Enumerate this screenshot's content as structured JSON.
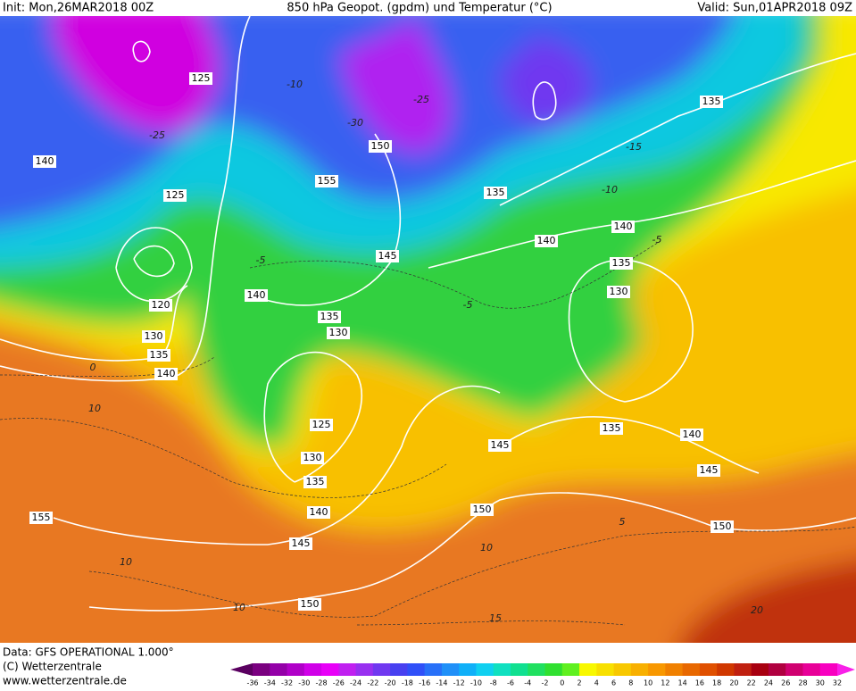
{
  "header": {
    "init": "Init: Mon,26MAR2018 00Z",
    "title": "850 hPa Geopot. (gpdm) und Temperatur (°C)",
    "valid": "Valid: Sun,01APR2018 09Z"
  },
  "map": {
    "geopotential_labels": [
      "125",
      "140",
      "125",
      "120",
      "130",
      "135",
      "140",
      "140",
      "135",
      "130",
      "145",
      "150",
      "155",
      "135",
      "140",
      "140",
      "135",
      "130",
      "135",
      "125",
      "130",
      "135",
      "140",
      "145",
      "150",
      "145",
      "150",
      "155",
      "135",
      "140",
      "145",
      "150"
    ],
    "temperature_labels": [
      "-10",
      "-25",
      "-30",
      "-25",
      "-15",
      "-10",
      "-5",
      "-5",
      "-5",
      "0",
      "10",
      "10",
      "10",
      "10",
      "5",
      "15",
      "20"
    ]
  },
  "footer": {
    "data": "Data: GFS OPERATIONAL 1.000°",
    "copyright": "(C) Wetterzentrale",
    "url": "www.wetterzentrale.de"
  },
  "legend": {
    "ticks": [
      -36,
      -34,
      -32,
      -30,
      -28,
      -26,
      -24,
      -22,
      -20,
      -18,
      -16,
      -14,
      -12,
      -10,
      -8,
      -6,
      -4,
      -2,
      0,
      2,
      4,
      6,
      8,
      10,
      12,
      14,
      16,
      18,
      20,
      22,
      24,
      26,
      28,
      30,
      32
    ],
    "colors": [
      "#5a0060",
      "#7a0080",
      "#9400a8",
      "#b000c8",
      "#d000e8",
      "#e800f8",
      "#c020f0",
      "#9830f0",
      "#7038f0",
      "#4840f0",
      "#3050f8",
      "#2870f8",
      "#2090f8",
      "#10b0f8",
      "#10d0f0",
      "#10e0c0",
      "#10e090",
      "#20e060",
      "#30e030",
      "#60f020",
      "#f8f800",
      "#f8e000",
      "#f8c800",
      "#f8b000",
      "#f89800",
      "#f08000",
      "#e86800",
      "#e05000",
      "#d03800",
      "#c02010",
      "#a80010",
      "#b00040",
      "#d00070",
      "#e80098",
      "#f800c0",
      "#f820e8"
    ]
  }
}
